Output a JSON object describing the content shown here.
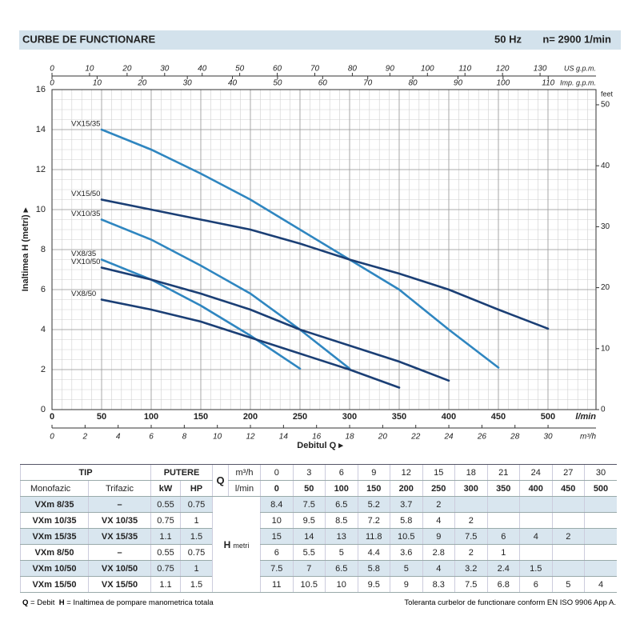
{
  "header": {
    "title": "CURBE DE FUNCTIONARE",
    "freq": "50 Hz",
    "speed": "n= 2900  1/min"
  },
  "chart_data": {
    "type": "line",
    "y_label": "Inaltimea H (metri) ▸",
    "x_title": "Debitul Q ▸",
    "x_label": "l/min",
    "xlim": [
      0,
      548.4
    ],
    "xticks": [
      0,
      50,
      100,
      150,
      200,
      250,
      300,
      350,
      400,
      450,
      500
    ],
    "x2_label": "m³/h",
    "x2lim": [
      0,
      32.9
    ],
    "x2ticks": [
      0,
      2,
      4,
      6,
      8,
      10,
      12,
      14,
      16,
      18,
      20,
      22,
      24,
      26,
      28,
      30
    ],
    "x3_label": "US g.p.m.",
    "x3lim": [
      0,
      144.9
    ],
    "x3ticks": [
      0,
      10,
      20,
      30,
      40,
      50,
      60,
      70,
      80,
      90,
      100,
      110,
      120,
      130
    ],
    "x4_label": "Imp. g.p.m.",
    "x4lim": [
      0,
      120.6
    ],
    "x4ticks": [
      0,
      10,
      20,
      30,
      40,
      50,
      60,
      70,
      80,
      90,
      100,
      110
    ],
    "ylim": [
      0,
      16
    ],
    "yticks": [
      0,
      2,
      4,
      6,
      8,
      10,
      12,
      14,
      16
    ],
    "y2_label": "feet",
    "y2lim": [
      0,
      52.49
    ],
    "y2ticks": [
      0,
      10,
      20,
      30,
      40,
      50
    ],
    "grid": true,
    "x": [
      50,
      100,
      150,
      200,
      250,
      300,
      350,
      400,
      450,
      500
    ],
    "series": [
      {
        "name": "VX15/35",
        "color": "#2f86c0",
        "values": [
          14,
          13,
          11.8,
          10.5,
          9,
          7.5,
          6,
          4,
          2.1,
          null
        ]
      },
      {
        "name": "VX15/50",
        "color": "#1b3f75",
        "values": [
          10.5,
          10,
          9.5,
          9,
          8.3,
          7.5,
          6.8,
          6,
          5,
          4.05
        ]
      },
      {
        "name": "VX10/35",
        "color": "#2f86c0",
        "values": [
          9.5,
          8.5,
          7.2,
          5.8,
          4,
          2.05,
          null,
          null,
          null,
          null
        ]
      },
      {
        "name": "VX8/35",
        "color": "#2f86c0",
        "values": [
          7.5,
          6.5,
          5.2,
          3.7,
          2.05,
          null,
          null,
          null,
          null,
          null
        ]
      },
      {
        "name": "VX10/50",
        "color": "#1b3f75",
        "values": [
          7.1,
          6.5,
          5.8,
          5,
          4,
          3.2,
          2.4,
          1.45,
          null,
          null
        ]
      },
      {
        "name": "VX8/50",
        "color": "#1b3f75",
        "values": [
          5.5,
          5,
          4.4,
          3.6,
          2.8,
          2,
          1.1,
          null,
          null,
          null
        ]
      }
    ]
  },
  "table": {
    "tip": "TIP",
    "putere": "PUTERE",
    "q": "Q",
    "m3h_unit": "m³/h",
    "lmin_unit": "l/min",
    "q_m3h": [
      0,
      3,
      6,
      9,
      12,
      15,
      18,
      21,
      24,
      27,
      30
    ],
    "q_lmin": [
      0,
      50,
      100,
      150,
      200,
      250,
      300,
      350,
      400,
      450,
      500
    ],
    "monofazic": "Monofazic",
    "trifazic": "Trifazic",
    "kw": "kW",
    "hp": "HP",
    "h": "H",
    "h_unit": "metri",
    "rows": [
      {
        "mono": "VXm 8/35",
        "tri": "–",
        "kw": 0.55,
        "hp": 0.75,
        "h": [
          8.4,
          7.5,
          6.5,
          5.2,
          3.7,
          2
        ]
      },
      {
        "mono": "VXm 10/35",
        "tri": "VX 10/35",
        "kw": 0.75,
        "hp": 1,
        "h": [
          10,
          9.5,
          8.5,
          7.2,
          5.8,
          4,
          2
        ]
      },
      {
        "mono": "VXm 15/35",
        "tri": "VX 15/35",
        "kw": 1.1,
        "hp": 1.5,
        "h": [
          15,
          14,
          13,
          11.8,
          10.5,
          9,
          7.5,
          6,
          4,
          2
        ]
      },
      {
        "mono": "VXm 8/50",
        "tri": "–",
        "kw": 0.55,
        "hp": 0.75,
        "h": [
          6,
          5.5,
          5,
          4.4,
          3.6,
          2.8,
          2,
          1
        ]
      },
      {
        "mono": "VXm 10/50",
        "tri": "VX 10/50",
        "kw": 0.75,
        "hp": 1,
        "h": [
          7.5,
          7,
          6.5,
          5.8,
          5,
          4,
          3.2,
          2.4,
          1.5
        ]
      },
      {
        "mono": "VXm 15/50",
        "tri": "VX 15/50",
        "kw": 1.1,
        "hp": 1.5,
        "h": [
          11,
          10.5,
          10,
          9.5,
          9,
          8.3,
          7.5,
          6.8,
          6,
          5,
          4
        ]
      }
    ]
  },
  "footer": {
    "q": "Q",
    "q_text": "= Debit",
    "h": "H",
    "h_text": "= Inaltimea de pompare manometrica totala",
    "note": "Toleranta curbelor de functionare conform EN ISO 9906 App A."
  }
}
